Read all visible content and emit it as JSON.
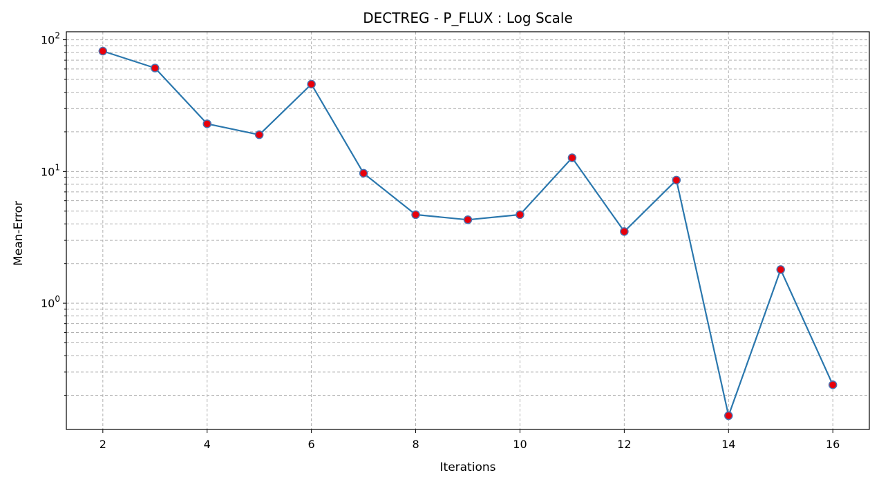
{
  "chart_data": {
    "type": "line",
    "title": "DECTREG - P_FLUX : Log Scale",
    "xlabel": "Iterations",
    "ylabel": "Mean-Error",
    "y_scale": "log",
    "grid": "both (major and minor, dashed)",
    "xlim": [
      1.3,
      16.7
    ],
    "ylim": [
      0.11,
      115
    ],
    "x_ticks": [
      2,
      4,
      6,
      8,
      10,
      12,
      14,
      16
    ],
    "x_tick_labels": [
      "2",
      "4",
      "6",
      "8",
      "10",
      "12",
      "14",
      "16"
    ],
    "y_ticks": [
      1,
      10,
      100
    ],
    "y_tick_labels": [
      {
        "base": "10",
        "exp": "0"
      },
      {
        "base": "10",
        "exp": "1"
      },
      {
        "base": "10",
        "exp": "2"
      }
    ],
    "x": [
      2,
      3,
      4,
      5,
      6,
      7,
      8,
      9,
      10,
      11,
      12,
      13,
      14,
      15,
      16
    ],
    "series": [
      {
        "values": [
          82,
          61,
          23,
          19,
          46,
          9.7,
          4.7,
          4.3,
          4.7,
          12.7,
          3.5,
          8.6,
          0.14,
          1.8,
          0.24
        ],
        "line_color": "#2a77ad",
        "marker_face": "#e8000b",
        "marker_edge": "#4c72b0"
      }
    ]
  }
}
